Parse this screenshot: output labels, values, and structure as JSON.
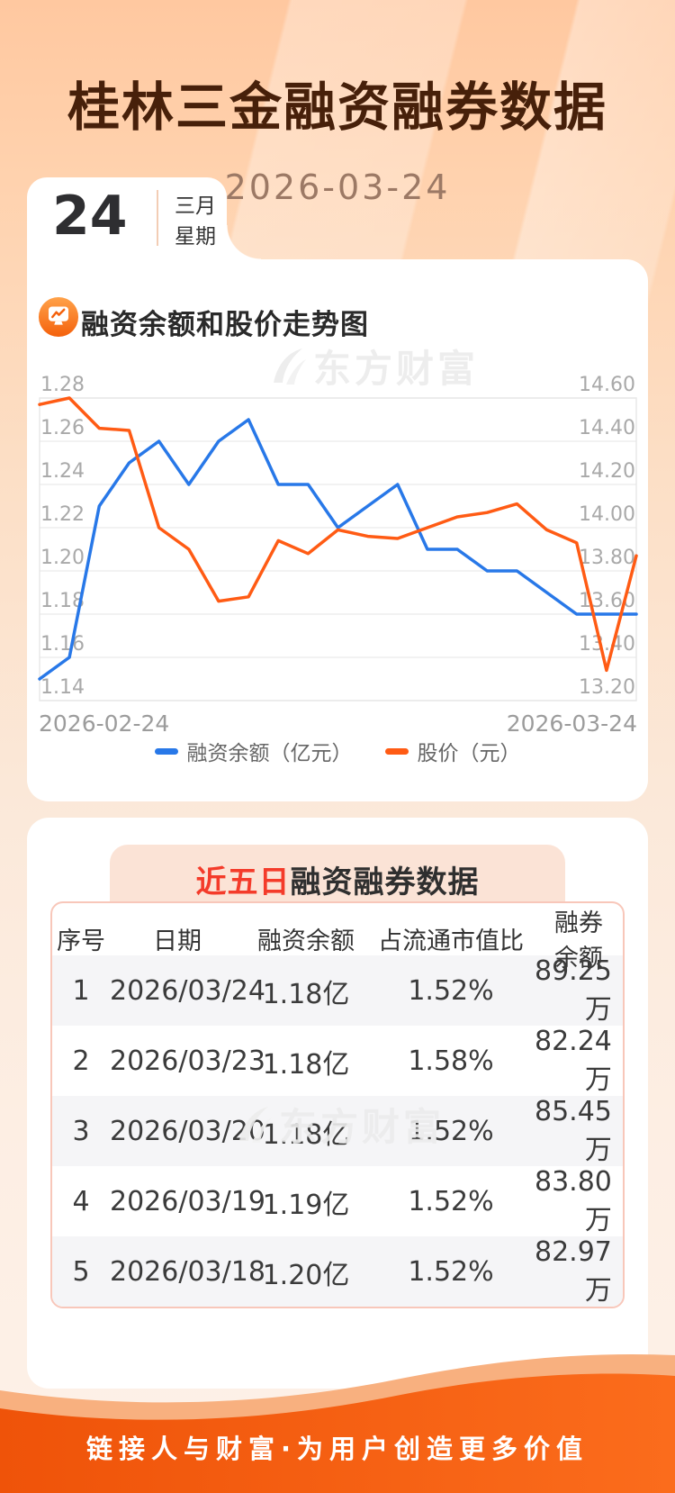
{
  "header": {
    "title": "桂林三金融资融券数据",
    "date": "2026-03-24"
  },
  "calendar": {
    "day": "24",
    "month": "三月",
    "weekday": "星期二"
  },
  "chart_section": {
    "icon": "line-chart-icon",
    "title": "融资余额和股价走势图",
    "watermark": "东方财富"
  },
  "chart_data": {
    "type": "line",
    "title": "融资余额和股价走势图",
    "x_axis": {
      "start_label": "2026-02-24",
      "end_label": "2026-03-24",
      "points": 21
    },
    "left_axis": {
      "min": 1.14,
      "max": 1.28,
      "ticks": [
        "1.28",
        "1.26",
        "1.24",
        "1.22",
        "1.20",
        "1.18",
        "1.16",
        "1.14"
      ]
    },
    "right_axis": {
      "min": 13.2,
      "max": 14.6,
      "ticks": [
        "14.60",
        "14.40",
        "14.20",
        "14.00",
        "13.80",
        "13.60",
        "13.40",
        "13.20"
      ]
    },
    "grid": true,
    "legend_position": "bottom",
    "series": [
      {
        "name": "融资余额（亿元）",
        "axis": "left",
        "color": "#2878e8",
        "values": [
          1.15,
          1.16,
          1.23,
          1.25,
          1.26,
          1.24,
          1.26,
          1.27,
          1.24,
          1.24,
          1.22,
          1.23,
          1.24,
          1.21,
          1.21,
          1.2,
          1.2,
          1.19,
          1.18,
          1.18,
          1.18
        ]
      },
      {
        "name": "股价（元）",
        "axis": "right",
        "color": "#ff5b14",
        "values": [
          14.57,
          14.6,
          14.46,
          14.45,
          14.0,
          13.9,
          13.66,
          13.68,
          13.94,
          13.88,
          13.99,
          13.96,
          13.95,
          14.0,
          14.05,
          14.07,
          14.11,
          13.99,
          13.93,
          13.34,
          13.87
        ]
      }
    ]
  },
  "table_section": {
    "title_highlight": "近五日",
    "title_rest": "融资融券数据",
    "watermark": "东方财富",
    "columns": [
      "序号",
      "日期",
      "融资余额",
      "占流通市值比",
      "融券余额"
    ],
    "rows": [
      [
        "1",
        "2026/03/24",
        "1.18亿",
        "1.52%",
        "89.25万"
      ],
      [
        "2",
        "2026/03/23",
        "1.18亿",
        "1.58%",
        "82.24万"
      ],
      [
        "3",
        "2026/03/20",
        "1.18亿",
        "1.52%",
        "85.45万"
      ],
      [
        "4",
        "2026/03/19",
        "1.19亿",
        "1.52%",
        "83.80万"
      ],
      [
        "5",
        "2026/03/18",
        "1.20亿",
        "1.52%",
        "82.97万"
      ]
    ]
  },
  "footer": {
    "slogan": "链接人与财富·为用户创造更多价值"
  },
  "colors": {
    "accent_blue": "#2878e8",
    "accent_orange": "#ff5b14",
    "title_brown": "#47200a",
    "highlight_red": "#f43b2a",
    "footer_orange": "#f2590d"
  }
}
